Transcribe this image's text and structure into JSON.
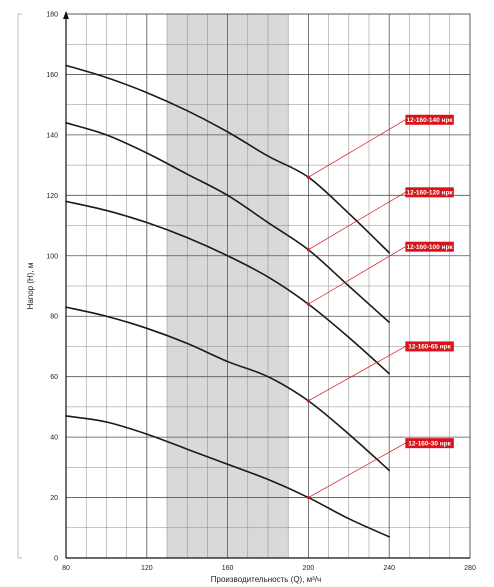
{
  "chart_data": {
    "type": "line",
    "title": "",
    "xlabel": "Производительность (Q), м³/ч",
    "ylabel": "Напор (H), м",
    "xlim": [
      80,
      280
    ],
    "ylim": [
      0,
      180
    ],
    "x_major_ticks": [
      80,
      120,
      160,
      200,
      240,
      280
    ],
    "y_major_ticks": [
      0,
      20,
      40,
      60,
      80,
      100,
      120,
      140,
      160,
      180
    ],
    "grid": true,
    "shaded_region": {
      "x": [
        130,
        190
      ],
      "color": "#d9d9d9"
    },
    "curve_color": "#1a1a1a",
    "label_color": "#d7141a",
    "series": [
      {
        "name": "12-160-140 нрк",
        "x": [
          80,
          100,
          120,
          140,
          160,
          180,
          200,
          220,
          240
        ],
        "y": [
          163,
          159,
          154,
          148,
          141,
          133,
          126,
          114,
          101
        ],
        "label_y_position": 145
      },
      {
        "name": "12-160-120 нрк",
        "x": [
          80,
          100,
          120,
          140,
          160,
          180,
          200,
          220,
          240
        ],
        "y": [
          144,
          140,
          134,
          127,
          120,
          111,
          102,
          90,
          78
        ],
        "label_y_position": 121
      },
      {
        "name": "12-160-100 нрк",
        "x": [
          80,
          100,
          120,
          140,
          160,
          180,
          200,
          220,
          240
        ],
        "y": [
          118,
          115,
          111,
          106,
          100,
          93,
          84,
          73,
          61
        ],
        "label_y_position": 103
      },
      {
        "name": "12-160-65 нрк",
        "x": [
          80,
          100,
          120,
          140,
          160,
          180,
          200,
          220,
          240
        ],
        "y": [
          83,
          80,
          76,
          71,
          65,
          60,
          52,
          41,
          29
        ],
        "label_y_position": 70
      },
      {
        "name": "12-160-30 нрк",
        "x": [
          80,
          100,
          120,
          140,
          160,
          180,
          200,
          220,
          240
        ],
        "y": [
          47,
          45,
          41,
          36,
          31,
          26,
          20,
          13,
          7
        ],
        "label_y_position": 38
      }
    ]
  }
}
